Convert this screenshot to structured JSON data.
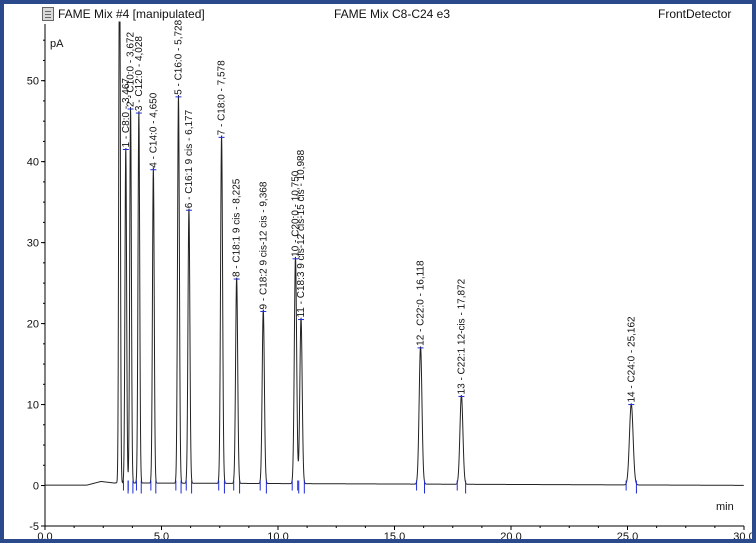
{
  "window": {
    "document_title": "FAME Mix #4 [manipulated]",
    "method_title": "FAME Mix C8-C24 e3",
    "detector": "FrontDetector"
  },
  "colors": {
    "trace": "#222222",
    "marker": "#1f2ad6",
    "axis": "#000000",
    "frame_bg": "#2b4a8c"
  },
  "chart_data": {
    "type": "line",
    "title": "FAME Mix C8-C24 e3",
    "xlabel": "min",
    "ylabel": "pA",
    "xlim": [
      0,
      30
    ],
    "ylim": [
      -5,
      57
    ],
    "x_ticks": [
      "0,0",
      "5,0",
      "10,0",
      "15,0",
      "20,0",
      "25,0",
      "30,0"
    ],
    "y_ticks": [
      "-5",
      "0",
      "10",
      "20",
      "30",
      "40",
      "50"
    ],
    "grid": false,
    "peaks": [
      {
        "label": "1 - C8:0 - 3,467",
        "rt": 3.467,
        "height": 41.5
      },
      {
        "label": "2 - C10:0 - 3,672",
        "rt": 3.672,
        "height": 46.5
      },
      {
        "label": "3 - C12:0 - 4,028",
        "rt": 4.028,
        "height": 46.0
      },
      {
        "label": "4 - C14:0 - 4,650",
        "rt": 4.65,
        "height": 39.0
      },
      {
        "label": "5 - C16:0 - 5,728",
        "rt": 5.728,
        "height": 48.0
      },
      {
        "label": "6 - C16:1 9 cis - 6,177",
        "rt": 6.177,
        "height": 34.0
      },
      {
        "label": "7 - C18:0 - 7,578",
        "rt": 7.578,
        "height": 43.0
      },
      {
        "label": "8 - C18:1 9 cis - 8,225",
        "rt": 8.225,
        "height": 25.5
      },
      {
        "label": "9 - C18:2 9 cis-12 cis - 9,368",
        "rt": 9.368,
        "height": 21.5
      },
      {
        "label": "10 - C20:0 - 10,750",
        "rt": 10.75,
        "height": 28.0
      },
      {
        "label": "11 - C18:3 9 cis-12 cis-15 cis - 10,988",
        "rt": 10.988,
        "height": 20.5
      },
      {
        "label": "12 - C22:0 - 16,118",
        "rt": 16.118,
        "height": 17.0
      },
      {
        "label": "13 - C22:1 12-cis - 17,872",
        "rt": 17.872,
        "height": 11.0
      },
      {
        "label": "14 - C24:0 - 25,162",
        "rt": 25.162,
        "height": 10.0
      }
    ],
    "solvent_peak": {
      "rt": 3.2,
      "height": 57
    }
  }
}
